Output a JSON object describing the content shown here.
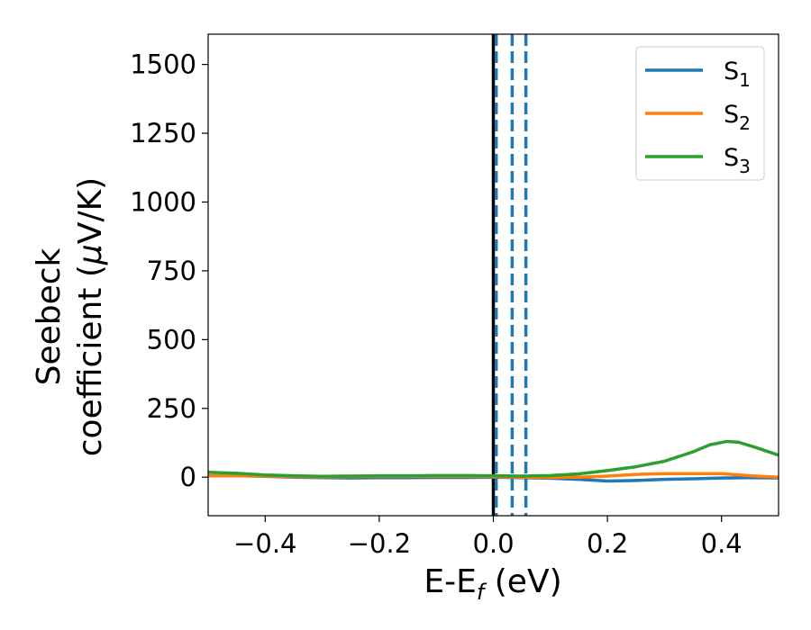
{
  "chart_data": {
    "type": "line",
    "xlabel": {
      "main": "E-E",
      "sub": "f",
      "unit": " (eV)"
    },
    "ylabel": {
      "line1": "Seebeck",
      "line2": "coefficient  (",
      "mu": "μ",
      "unit": "V/K)"
    },
    "xlim": [
      -0.5,
      0.5
    ],
    "ylim": [
      -140,
      1610
    ],
    "xticks": [
      -0.4,
      -0.2,
      0.0,
      0.2,
      0.4
    ],
    "xtick_labels": [
      "−0.4",
      "−0.2",
      "0.0",
      "0.2",
      "0.4"
    ],
    "yticks": [
      0,
      250,
      500,
      750,
      1000,
      1250,
      1500
    ],
    "ytick_labels": [
      "0",
      "250",
      "500",
      "750",
      "1000",
      "1250",
      "1500"
    ],
    "grid": false,
    "legend_position": "top-right",
    "series": [
      {
        "name": "S",
        "sub": "1",
        "color": "#1f77b4",
        "x": [
          -0.5,
          -0.45,
          -0.4,
          -0.35,
          -0.3,
          -0.25,
          -0.2,
          -0.15,
          -0.1,
          -0.05,
          0.0,
          0.05,
          0.1,
          0.15,
          0.2,
          0.25,
          0.3,
          0.35,
          0.4,
          0.45,
          0.5
        ],
        "y": [
          5,
          5,
          3,
          0,
          -2,
          -3,
          -2,
          -2,
          -1,
          -1,
          0,
          -2,
          -4,
          -8,
          -14,
          -12,
          -8,
          -6,
          -3,
          -2,
          -3
        ]
      },
      {
        "name": "S",
        "sub": "2",
        "color": "#ff7f0e",
        "x": [
          -0.5,
          -0.45,
          -0.4,
          -0.35,
          -0.3,
          -0.25,
          -0.2,
          -0.15,
          -0.1,
          -0.05,
          0.0,
          0.05,
          0.1,
          0.15,
          0.2,
          0.25,
          0.3,
          0.35,
          0.4,
          0.45,
          0.5
        ],
        "y": [
          5,
          5,
          4,
          2,
          1,
          2,
          3,
          3,
          3,
          3,
          2,
          0,
          -1,
          0,
          4,
          10,
          13,
          13,
          13,
          5,
          0
        ]
      },
      {
        "name": "S",
        "sub": "3",
        "color": "#2ca02c",
        "x": [
          -0.5,
          -0.45,
          -0.4,
          -0.35,
          -0.3,
          -0.25,
          -0.2,
          -0.15,
          -0.1,
          -0.05,
          0.0,
          0.05,
          0.1,
          0.15,
          0.2,
          0.25,
          0.3,
          0.35,
          0.38,
          0.41,
          0.43,
          0.46,
          0.5
        ],
        "y": [
          18,
          14,
          8,
          5,
          3,
          4,
          5,
          5,
          6,
          6,
          5,
          4,
          6,
          12,
          24,
          38,
          58,
          92,
          118,
          130,
          127,
          108,
          80
        ]
      }
    ],
    "vlines": [
      {
        "x": 0.0,
        "color": "#000000",
        "style": "solid"
      },
      {
        "x": 0.005,
        "color": "#1f77b4",
        "style": "dashed"
      },
      {
        "x": 0.033,
        "color": "#1f77b4",
        "style": "dashed"
      },
      {
        "x": 0.057,
        "color": "#1f77b4",
        "style": "dashed"
      }
    ]
  }
}
